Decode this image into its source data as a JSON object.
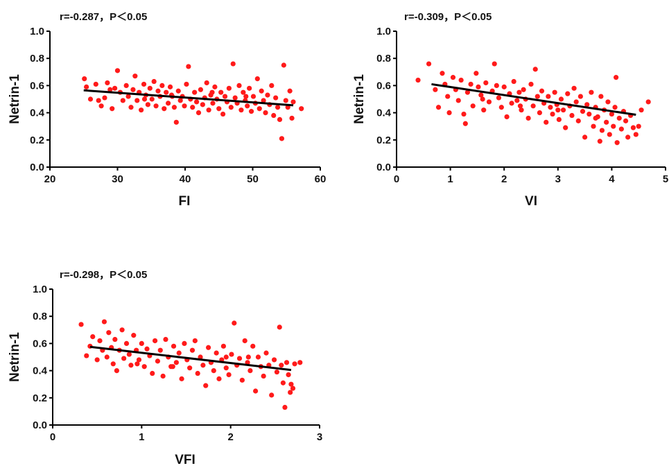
{
  "chart_data": [
    {
      "type": "scatter",
      "annotation": "r=-0.287，P＜0.05",
      "xlabel": "FI",
      "ylabel": "Netrin-1",
      "xlim": [
        20,
        60
      ],
      "ylim": [
        0.0,
        1.0
      ],
      "xticks": [
        "20",
        "30",
        "40",
        "50",
        "60"
      ],
      "yticks": [
        "0.0",
        "0.2",
        "0.4",
        "0.6",
        "0.8",
        "1.0"
      ],
      "fit_line": {
        "x": [
          25,
          56
        ],
        "y": [
          0.565,
          0.455
        ]
      },
      "points": [
        [
          25.1,
          0.65
        ],
        [
          25.4,
          0.59
        ],
        [
          26.0,
          0.5
        ],
        [
          26.8,
          0.61
        ],
        [
          27.2,
          0.49
        ],
        [
          27.6,
          0.45
        ],
        [
          28.1,
          0.51
        ],
        [
          28.5,
          0.62
        ],
        [
          28.9,
          0.57
        ],
        [
          29.2,
          0.43
        ],
        [
          29.6,
          0.58
        ],
        [
          30.0,
          0.71
        ],
        [
          30.4,
          0.55
        ],
        [
          30.8,
          0.49
        ],
        [
          31.3,
          0.6
        ],
        [
          31.6,
          0.52
        ],
        [
          32.0,
          0.44
        ],
        [
          32.3,
          0.57
        ],
        [
          32.6,
          0.67
        ],
        [
          32.9,
          0.49
        ],
        [
          33.2,
          0.55
        ],
        [
          33.5,
          0.42
        ],
        [
          33.9,
          0.61
        ],
        [
          34.2,
          0.53
        ],
        [
          34.5,
          0.46
        ],
        [
          34.8,
          0.58
        ],
        [
          35.1,
          0.5
        ],
        [
          35.4,
          0.63
        ],
        [
          35.7,
          0.45
        ],
        [
          36.0,
          0.56
        ],
        [
          36.3,
          0.52
        ],
        [
          36.6,
          0.6
        ],
        [
          36.9,
          0.43
        ],
        [
          37.2,
          0.55
        ],
        [
          37.5,
          0.47
        ],
        [
          37.8,
          0.59
        ],
        [
          38.1,
          0.52
        ],
        [
          38.4,
          0.44
        ],
        [
          38.7,
          0.33
        ],
        [
          39.0,
          0.56
        ],
        [
          39.3,
          0.49
        ],
        [
          39.6,
          0.52
        ],
        [
          39.9,
          0.45
        ],
        [
          40.2,
          0.61
        ],
        [
          40.5,
          0.74
        ],
        [
          40.8,
          0.5
        ],
        [
          41.1,
          0.44
        ],
        [
          41.4,
          0.55
        ],
        [
          41.7,
          0.48
        ],
        [
          42.0,
          0.4
        ],
        [
          42.3,
          0.57
        ],
        [
          42.6,
          0.46
        ],
        [
          42.9,
          0.51
        ],
        [
          43.2,
          0.62
        ],
        [
          43.5,
          0.42
        ],
        [
          43.8,
          0.53
        ],
        [
          44.1,
          0.47
        ],
        [
          44.4,
          0.59
        ],
        [
          44.7,
          0.5
        ],
        [
          45.0,
          0.43
        ],
        [
          45.3,
          0.55
        ],
        [
          45.6,
          0.39
        ],
        [
          45.9,
          0.52
        ],
        [
          46.2,
          0.48
        ],
        [
          46.5,
          0.58
        ],
        [
          46.8,
          0.44
        ],
        [
          47.1,
          0.76
        ],
        [
          47.4,
          0.51
        ],
        [
          47.7,
          0.47
        ],
        [
          48.0,
          0.6
        ],
        [
          48.3,
          0.42
        ],
        [
          48.6,
          0.55
        ],
        [
          48.9,
          0.49
        ],
        [
          49.2,
          0.45
        ],
        [
          49.5,
          0.58
        ],
        [
          49.8,
          0.41
        ],
        [
          50.1,
          0.52
        ],
        [
          50.4,
          0.47
        ],
        [
          50.7,
          0.65
        ],
        [
          51.0,
          0.43
        ],
        [
          51.3,
          0.56
        ],
        [
          51.6,
          0.49
        ],
        [
          51.9,
          0.4
        ],
        [
          52.2,
          0.53
        ],
        [
          52.5,
          0.46
        ],
        [
          52.8,
          0.6
        ],
        [
          53.1,
          0.38
        ],
        [
          53.4,
          0.51
        ],
        [
          53.7,
          0.44
        ],
        [
          54.0,
          0.35
        ],
        [
          54.3,
          0.21
        ],
        [
          54.6,
          0.75
        ],
        [
          54.9,
          0.49
        ],
        [
          55.2,
          0.44
        ],
        [
          55.5,
          0.56
        ],
        [
          55.8,
          0.36
        ],
        [
          56.0,
          0.48
        ],
        [
          57.2,
          0.43
        ],
        [
          34.0,
          0.5
        ],
        [
          38.0,
          0.53
        ],
        [
          44.0,
          0.55
        ],
        [
          49.0,
          0.52
        ]
      ]
    },
    {
      "type": "scatter",
      "annotation": "r=-0.309，P＜0.05",
      "xlabel": "VI",
      "ylabel": "Netrin-1",
      "xlim": [
        0,
        5
      ],
      "ylim": [
        0.0,
        1.0
      ],
      "xticks": [
        "0",
        "1",
        "2",
        "3",
        "4",
        "5"
      ],
      "yticks": [
        "0.0",
        "0.2",
        "0.4",
        "0.6",
        "0.8",
        "1.0"
      ],
      "fit_line": {
        "x": [
          0.65,
          4.45
        ],
        "y": [
          0.61,
          0.385
        ]
      },
      "points": [
        [
          0.4,
          0.64
        ],
        [
          0.6,
          0.76
        ],
        [
          0.72,
          0.57
        ],
        [
          0.78,
          0.44
        ],
        [
          0.85,
          0.69
        ],
        [
          0.9,
          0.61
        ],
        [
          0.95,
          0.52
        ],
        [
          0.98,
          0.4
        ],
        [
          1.05,
          0.66
        ],
        [
          1.1,
          0.57
        ],
        [
          1.15,
          0.49
        ],
        [
          1.2,
          0.64
        ],
        [
          1.25,
          0.39
        ],
        [
          1.28,
          0.32
        ],
        [
          1.32,
          0.55
        ],
        [
          1.38,
          0.61
        ],
        [
          1.42,
          0.45
        ],
        [
          1.48,
          0.69
        ],
        [
          1.52,
          0.59
        ],
        [
          1.57,
          0.53
        ],
        [
          1.62,
          0.42
        ],
        [
          1.66,
          0.62
        ],
        [
          1.72,
          0.48
        ],
        [
          1.78,
          0.56
        ],
        [
          1.82,
          0.76
        ],
        [
          1.86,
          0.6
        ],
        [
          1.9,
          0.51
        ],
        [
          1.95,
          0.44
        ],
        [
          2.0,
          0.59
        ],
        [
          2.05,
          0.37
        ],
        [
          2.1,
          0.54
        ],
        [
          2.14,
          0.47
        ],
        [
          2.18,
          0.63
        ],
        [
          2.24,
          0.49
        ],
        [
          2.28,
          0.55
        ],
        [
          2.32,
          0.42
        ],
        [
          2.36,
          0.57
        ],
        [
          2.4,
          0.5
        ],
        [
          2.45,
          0.36
        ],
        [
          2.5,
          0.61
        ],
        [
          2.54,
          0.45
        ],
        [
          2.58,
          0.72
        ],
        [
          2.62,
          0.52
        ],
        [
          2.66,
          0.4
        ],
        [
          2.7,
          0.56
        ],
        [
          2.74,
          0.47
        ],
        [
          2.78,
          0.33
        ],
        [
          2.82,
          0.52
        ],
        [
          2.86,
          0.44
        ],
        [
          2.9,
          0.39
        ],
        [
          2.94,
          0.55
        ],
        [
          2.98,
          0.46
        ],
        [
          3.02,
          0.35
        ],
        [
          3.06,
          0.5
        ],
        [
          3.1,
          0.42
        ],
        [
          3.14,
          0.29
        ],
        [
          3.18,
          0.54
        ],
        [
          3.22,
          0.45
        ],
        [
          3.26,
          0.38
        ],
        [
          3.3,
          0.58
        ],
        [
          3.34,
          0.48
        ],
        [
          3.38,
          0.34
        ],
        [
          3.42,
          0.52
        ],
        [
          3.46,
          0.41
        ],
        [
          3.5,
          0.22
        ],
        [
          3.54,
          0.46
        ],
        [
          3.58,
          0.39
        ],
        [
          3.62,
          0.55
        ],
        [
          3.66,
          0.3
        ],
        [
          3.7,
          0.44
        ],
        [
          3.74,
          0.37
        ],
        [
          3.78,
          0.19
        ],
        [
          3.8,
          0.52
        ],
        [
          3.82,
          0.27
        ],
        [
          3.86,
          0.42
        ],
        [
          3.9,
          0.33
        ],
        [
          3.93,
          0.48
        ],
        [
          3.96,
          0.24
        ],
        [
          4.0,
          0.39
        ],
        [
          4.03,
          0.3
        ],
        [
          4.06,
          0.44
        ],
        [
          4.08,
          0.66
        ],
        [
          4.1,
          0.18
        ],
        [
          4.14,
          0.36
        ],
        [
          4.18,
          0.28
        ],
        [
          4.22,
          0.41
        ],
        [
          4.26,
          0.34
        ],
        [
          4.3,
          0.22
        ],
        [
          4.35,
          0.38
        ],
        [
          4.4,
          0.29
        ],
        [
          4.45,
          0.24
        ],
        [
          4.5,
          0.3
        ],
        [
          4.55,
          0.42
        ],
        [
          4.68,
          0.48
        ],
        [
          1.6,
          0.5
        ],
        [
          2.3,
          0.45
        ],
        [
          3.0,
          0.42
        ],
        [
          3.7,
          0.36
        ]
      ]
    },
    {
      "type": "scatter",
      "annotation": "r=-0.298，P＜0.05",
      "xlabel": "VFI",
      "ylabel": "Netrin-1",
      "xlim": [
        0,
        3
      ],
      "ylim": [
        0.0,
        1.0
      ],
      "xticks": [
        "0",
        "1",
        "2",
        "3"
      ],
      "yticks": [
        "0.0",
        "0.2",
        "0.4",
        "0.6",
        "0.8",
        "1.0"
      ],
      "fit_line": {
        "x": [
          0.42,
          2.68
        ],
        "y": [
          0.575,
          0.405
        ]
      },
      "points": [
        [
          0.32,
          0.74
        ],
        [
          0.38,
          0.51
        ],
        [
          0.42,
          0.58
        ],
        [
          0.45,
          0.65
        ],
        [
          0.5,
          0.48
        ],
        [
          0.53,
          0.62
        ],
        [
          0.56,
          0.55
        ],
        [
          0.58,
          0.76
        ],
        [
          0.61,
          0.5
        ],
        [
          0.63,
          0.68
        ],
        [
          0.66,
          0.57
        ],
        [
          0.68,
          0.45
        ],
        [
          0.7,
          0.63
        ],
        [
          0.72,
          0.4
        ],
        [
          0.75,
          0.55
        ],
        [
          0.78,
          0.7
        ],
        [
          0.8,
          0.49
        ],
        [
          0.83,
          0.6
        ],
        [
          0.86,
          0.52
        ],
        [
          0.88,
          0.44
        ],
        [
          0.91,
          0.66
        ],
        [
          0.94,
          0.55
        ],
        [
          0.97,
          0.48
        ],
        [
          1.0,
          0.6
        ],
        [
          1.03,
          0.43
        ],
        [
          1.06,
          0.56
        ],
        [
          1.09,
          0.51
        ],
        [
          1.12,
          0.38
        ],
        [
          1.15,
          0.62
        ],
        [
          1.18,
          0.47
        ],
        [
          1.21,
          0.55
        ],
        [
          1.24,
          0.36
        ],
        [
          1.27,
          0.63
        ],
        [
          1.3,
          0.5
        ],
        [
          1.33,
          0.43
        ],
        [
          1.36,
          0.58
        ],
        [
          1.39,
          0.46
        ],
        [
          1.42,
          0.53
        ],
        [
          1.45,
          0.34
        ],
        [
          1.48,
          0.6
        ],
        [
          1.51,
          0.48
        ],
        [
          1.54,
          0.42
        ],
        [
          1.57,
          0.55
        ],
        [
          1.6,
          0.62
        ],
        [
          1.63,
          0.38
        ],
        [
          1.66,
          0.5
        ],
        [
          1.69,
          0.44
        ],
        [
          1.72,
          0.29
        ],
        [
          1.75,
          0.57
        ],
        [
          1.78,
          0.46
        ],
        [
          1.81,
          0.4
        ],
        [
          1.84,
          0.53
        ],
        [
          1.87,
          0.34
        ],
        [
          1.9,
          0.48
        ],
        [
          1.92,
          0.58
        ],
        [
          1.95,
          0.42
        ],
        [
          1.98,
          0.37
        ],
        [
          2.01,
          0.52
        ],
        [
          2.04,
          0.75
        ],
        [
          2.07,
          0.44
        ],
        [
          2.1,
          0.49
        ],
        [
          2.13,
          0.33
        ],
        [
          2.16,
          0.62
        ],
        [
          2.19,
          0.46
        ],
        [
          2.22,
          0.4
        ],
        [
          2.25,
          0.58
        ],
        [
          2.28,
          0.25
        ],
        [
          2.31,
          0.5
        ],
        [
          2.34,
          0.43
        ],
        [
          2.37,
          0.36
        ],
        [
          2.4,
          0.53
        ],
        [
          2.43,
          0.44
        ],
        [
          2.46,
          0.22
        ],
        [
          2.49,
          0.48
        ],
        [
          2.52,
          0.39
        ],
        [
          2.55,
          0.72
        ],
        [
          2.57,
          0.44
        ],
        [
          2.59,
          0.31
        ],
        [
          2.61,
          0.13
        ],
        [
          2.63,
          0.46
        ],
        [
          2.65,
          0.37
        ],
        [
          2.67,
          0.24
        ],
        [
          2.68,
          0.3
        ],
        [
          2.7,
          0.27
        ],
        [
          2.72,
          0.45
        ],
        [
          2.78,
          0.46
        ],
        [
          1.35,
          0.43
        ],
        [
          1.95,
          0.5
        ],
        [
          0.95,
          0.45
        ],
        [
          2.2,
          0.5
        ]
      ]
    }
  ]
}
